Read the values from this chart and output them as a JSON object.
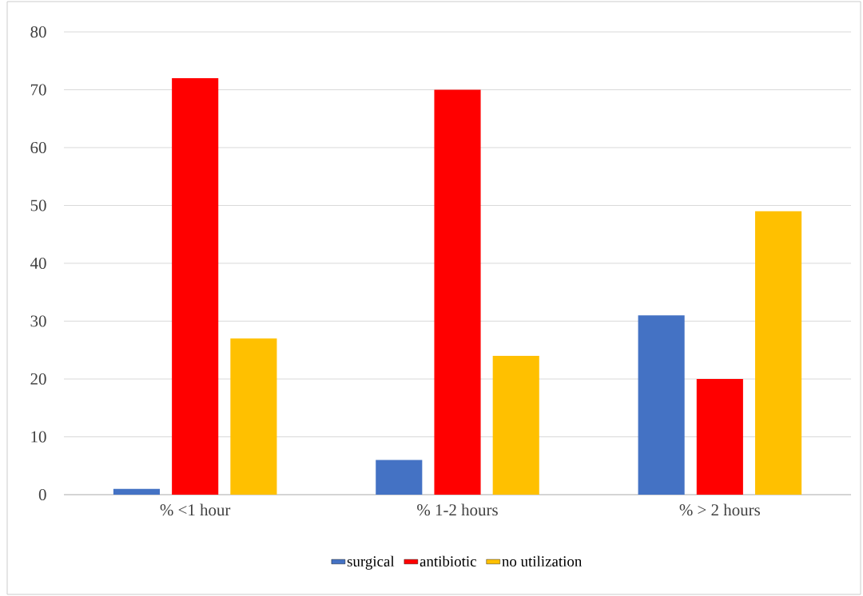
{
  "chart_data": {
    "type": "bar",
    "categories": [
      "% <1 hour",
      "% 1-2 hours",
      "% > 2 hours"
    ],
    "series": [
      {
        "name": "surgical",
        "color": "#4472c4",
        "values": [
          1,
          6,
          31
        ]
      },
      {
        "name": "antibiotic",
        "color": "#ff0000",
        "values": [
          72,
          70,
          20
        ]
      },
      {
        "name": "no utilization",
        "color": "#ffc000",
        "values": [
          27,
          24,
          49
        ]
      }
    ],
    "ylim": [
      0,
      80
    ],
    "yticks": [
      0,
      10,
      20,
      30,
      40,
      50,
      60,
      70,
      80
    ],
    "grid": "y",
    "legend": "bottom"
  }
}
